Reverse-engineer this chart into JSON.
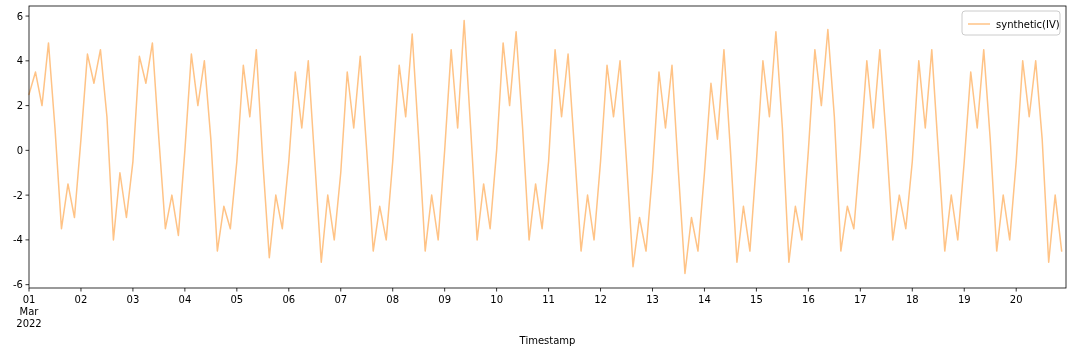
{
  "chart_data": {
    "type": "line",
    "xlabel": "Timestamp",
    "legend": "top right",
    "grid": false,
    "xlim": [
      "2022-03-01T00:00",
      "2022-03-20T23:00"
    ],
    "xticks": [
      {
        "value": "2022-03-01T00:00",
        "label": "01\nMar\n2022"
      },
      {
        "value": "2022-03-02T00:00",
        "label": "02"
      },
      {
        "value": "2022-03-03T00:00",
        "label": "03"
      },
      {
        "value": "2022-03-04T00:00",
        "label": "04"
      },
      {
        "value": "2022-03-05T00:00",
        "label": "05"
      },
      {
        "value": "2022-03-06T00:00",
        "label": "06"
      },
      {
        "value": "2022-03-07T00:00",
        "label": "07"
      },
      {
        "value": "2022-03-08T00:00",
        "label": "08"
      },
      {
        "value": "2022-03-09T00:00",
        "label": "09"
      },
      {
        "value": "2022-03-10T00:00",
        "label": "10"
      },
      {
        "value": "2022-03-11T00:00",
        "label": "11"
      },
      {
        "value": "2022-03-12T00:00",
        "label": "12"
      },
      {
        "value": "2022-03-13T00:00",
        "label": "13"
      },
      {
        "value": "2022-03-14T00:00",
        "label": "14"
      },
      {
        "value": "2022-03-15T00:00",
        "label": "15"
      },
      {
        "value": "2022-03-16T00:00",
        "label": "16"
      },
      {
        "value": "2022-03-17T00:00",
        "label": "17"
      },
      {
        "value": "2022-03-18T00:00",
        "label": "18"
      },
      {
        "value": "2022-03-19T00:00",
        "label": "19"
      },
      {
        "value": "2022-03-20T00:00",
        "label": "20"
      }
    ],
    "ylim": [
      -6.15,
      6.45
    ],
    "yticks": [
      -6,
      -4,
      -2,
      0,
      2,
      4,
      6
    ],
    "x": [
      "2022-03-01T00:00",
      "2022-03-01T03:00",
      "2022-03-01T06:00",
      "2022-03-01T09:00",
      "2022-03-01T12:00",
      "2022-03-01T15:00",
      "2022-03-01T18:00",
      "2022-03-01T21:00",
      "2022-03-02T00:00",
      "2022-03-02T03:00",
      "2022-03-02T06:00",
      "2022-03-02T09:00",
      "2022-03-02T12:00",
      "2022-03-02T15:00",
      "2022-03-02T18:00",
      "2022-03-02T21:00",
      "2022-03-03T00:00",
      "2022-03-03T03:00",
      "2022-03-03T06:00",
      "2022-03-03T09:00",
      "2022-03-03T12:00",
      "2022-03-03T15:00",
      "2022-03-03T18:00",
      "2022-03-03T21:00",
      "2022-03-04T00:00",
      "2022-03-04T03:00",
      "2022-03-04T06:00",
      "2022-03-04T09:00",
      "2022-03-04T12:00",
      "2022-03-04T15:00",
      "2022-03-04T18:00",
      "2022-03-04T21:00",
      "2022-03-05T00:00",
      "2022-03-05T03:00",
      "2022-03-05T06:00",
      "2022-03-05T09:00",
      "2022-03-05T12:00",
      "2022-03-05T15:00",
      "2022-03-05T18:00",
      "2022-03-05T21:00",
      "2022-03-06T00:00",
      "2022-03-06T03:00",
      "2022-03-06T06:00",
      "2022-03-06T09:00",
      "2022-03-06T12:00",
      "2022-03-06T15:00",
      "2022-03-06T18:00",
      "2022-03-06T21:00",
      "2022-03-07T00:00",
      "2022-03-07T03:00",
      "2022-03-07T06:00",
      "2022-03-07T09:00",
      "2022-03-07T12:00",
      "2022-03-07T15:00",
      "2022-03-07T18:00",
      "2022-03-07T21:00",
      "2022-03-08T00:00",
      "2022-03-08T03:00",
      "2022-03-08T06:00",
      "2022-03-08T09:00",
      "2022-03-08T12:00",
      "2022-03-08T15:00",
      "2022-03-08T18:00",
      "2022-03-08T21:00",
      "2022-03-09T00:00",
      "2022-03-09T03:00",
      "2022-03-09T06:00",
      "2022-03-09T09:00",
      "2022-03-09T12:00",
      "2022-03-09T15:00",
      "2022-03-09T18:00",
      "2022-03-09T21:00",
      "2022-03-10T00:00",
      "2022-03-10T03:00",
      "2022-03-10T06:00",
      "2022-03-10T09:00",
      "2022-03-10T12:00",
      "2022-03-10T15:00",
      "2022-03-10T18:00",
      "2022-03-10T21:00",
      "2022-03-11T00:00",
      "2022-03-11T03:00",
      "2022-03-11T06:00",
      "2022-03-11T09:00",
      "2022-03-11T12:00",
      "2022-03-11T15:00",
      "2022-03-11T18:00",
      "2022-03-11T21:00",
      "2022-03-12T00:00",
      "2022-03-12T03:00",
      "2022-03-12T06:00",
      "2022-03-12T09:00",
      "2022-03-12T12:00",
      "2022-03-12T15:00",
      "2022-03-12T18:00",
      "2022-03-12T21:00",
      "2022-03-13T00:00",
      "2022-03-13T03:00",
      "2022-03-13T06:00",
      "2022-03-13T09:00",
      "2022-03-13T12:00",
      "2022-03-13T15:00",
      "2022-03-13T18:00",
      "2022-03-13T21:00",
      "2022-03-14T00:00",
      "2022-03-14T03:00",
      "2022-03-14T06:00",
      "2022-03-14T09:00",
      "2022-03-14T12:00",
      "2022-03-14T15:00",
      "2022-03-14T18:00",
      "2022-03-14T21:00",
      "2022-03-15T00:00",
      "2022-03-15T03:00",
      "2022-03-15T06:00",
      "2022-03-15T09:00",
      "2022-03-15T12:00",
      "2022-03-15T15:00",
      "2022-03-15T18:00",
      "2022-03-15T21:00",
      "2022-03-16T00:00",
      "2022-03-16T03:00",
      "2022-03-16T06:00",
      "2022-03-16T09:00",
      "2022-03-16T12:00",
      "2022-03-16T15:00",
      "2022-03-16T18:00",
      "2022-03-16T21:00",
      "2022-03-17T00:00",
      "2022-03-17T03:00",
      "2022-03-17T06:00",
      "2022-03-17T09:00",
      "2022-03-17T12:00",
      "2022-03-17T15:00",
      "2022-03-17T18:00",
      "2022-03-17T21:00",
      "2022-03-18T00:00",
      "2022-03-18T03:00",
      "2022-03-18T06:00",
      "2022-03-18T09:00",
      "2022-03-18T12:00",
      "2022-03-18T15:00",
      "2022-03-18T18:00",
      "2022-03-18T21:00",
      "2022-03-19T00:00",
      "2022-03-19T03:00",
      "2022-03-19T06:00",
      "2022-03-19T09:00",
      "2022-03-19T12:00",
      "2022-03-19T15:00",
      "2022-03-19T18:00",
      "2022-03-19T21:00",
      "2022-03-20T00:00",
      "2022-03-20T03:00",
      "2022-03-20T06:00",
      "2022-03-20T09:00",
      "2022-03-20T12:00",
      "2022-03-20T15:00",
      "2022-03-20T18:00",
      "2022-03-20T21:00"
    ],
    "series": [
      {
        "name": "synthetic(IV)",
        "color": "#ffc386",
        "values": [
          2.5,
          3.5,
          2.0,
          4.8,
          1.0,
          -3.5,
          -1.5,
          -3.0,
          0.5,
          4.3,
          3.0,
          4.5,
          1.5,
          -4.0,
          -1.0,
          -3.0,
          -0.5,
          4.2,
          3.0,
          4.8,
          0.5,
          -3.5,
          -2.0,
          -3.8,
          0.0,
          4.3,
          2.0,
          4.0,
          0.5,
          -4.5,
          -2.5,
          -3.5,
          -0.5,
          3.8,
          1.5,
          4.5,
          -0.5,
          -4.8,
          -2.0,
          -3.5,
          -0.5,
          3.5,
          1.0,
          4.0,
          -0.5,
          -5.0,
          -2.0,
          -4.0,
          -1.0,
          3.5,
          1.0,
          4.2,
          0.0,
          -4.5,
          -2.5,
          -4.0,
          -0.5,
          3.8,
          1.5,
          5.2,
          0.5,
          -4.5,
          -2.0,
          -4.0,
          0.0,
          4.5,
          1.0,
          5.8,
          1.0,
          -4.0,
          -1.5,
          -3.5,
          0.0,
          4.8,
          2.0,
          5.3,
          1.0,
          -4.0,
          -1.5,
          -3.5,
          -0.5,
          4.5,
          1.5,
          4.3,
          0.0,
          -4.5,
          -2.0,
          -4.0,
          -0.5,
          3.8,
          1.5,
          4.0,
          -0.5,
          -5.2,
          -3.0,
          -4.5,
          -1.0,
          3.5,
          1.0,
          3.8,
          -1.0,
          -5.5,
          -3.0,
          -4.5,
          -1.0,
          3.0,
          0.5,
          4.5,
          0.0,
          -5.0,
          -2.5,
          -4.5,
          -0.5,
          4.0,
          1.5,
          5.3,
          1.0,
          -5.0,
          -2.5,
          -4.0,
          0.0,
          4.5,
          2.0,
          5.4,
          1.5,
          -4.5,
          -2.5,
          -3.5,
          0.0,
          4.0,
          1.0,
          4.5,
          0.5,
          -4.0,
          -2.0,
          -3.5,
          -0.5,
          4.0,
          1.0,
          4.5,
          0.0,
          -4.5,
          -2.0,
          -4.0,
          -0.5,
          3.5,
          1.0,
          4.5,
          0.5,
          -4.5,
          -2.0,
          -4.0,
          -0.5,
          4.0,
          1.5,
          4.0,
          0.5,
          -5.0,
          -2.0,
          -4.5
        ]
      }
    ]
  }
}
